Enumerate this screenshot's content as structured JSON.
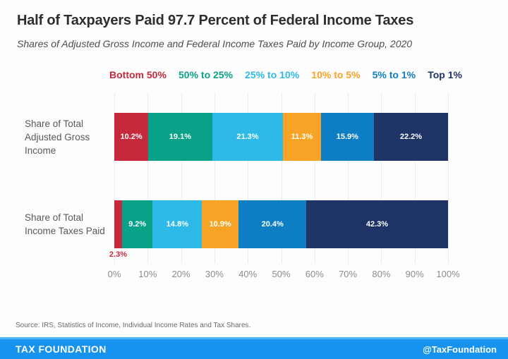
{
  "title": "Half of Taxpayers Paid 97.7 Percent of Federal Income Taxes",
  "subtitle": "Shares of Adjusted Gross Income and Federal Income Taxes Paid by Income Group, 2020",
  "chart_data": {
    "type": "bar",
    "orientation": "horizontal",
    "stacked": true,
    "categories": [
      "Share of Total Adjusted Gross Income",
      "Share of Total Income Taxes Paid"
    ],
    "category_label_lines": [
      [
        "Share of Total",
        "Adjusted Gross",
        "Income"
      ],
      [
        "Share of Total",
        "Income Taxes Paid"
      ]
    ],
    "series": [
      {
        "name": "Bottom 50%",
        "color": "#c5293b",
        "values": [
          10.2,
          2.3
        ]
      },
      {
        "name": "50% to 25%",
        "color": "#0aa189",
        "values": [
          19.1,
          9.2
        ]
      },
      {
        "name": "25% to 10%",
        "color": "#2fb9e9",
        "values": [
          21.3,
          14.8
        ]
      },
      {
        "name": "10% to 5%",
        "color": "#f7a325",
        "values": [
          11.3,
          10.9
        ]
      },
      {
        "name": "5% to 1%",
        "color": "#0d7ec4",
        "values": [
          15.9,
          20.4
        ]
      },
      {
        "name": "Top 1%",
        "color": "#1e3366",
        "values": [
          22.2,
          42.3
        ]
      }
    ],
    "xlim": [
      0,
      100
    ],
    "x_ticks": [
      "0%",
      "10%",
      "20%",
      "30%",
      "40%",
      "50%",
      "60%",
      "70%",
      "80%",
      "90%",
      "100%"
    ],
    "grid": true,
    "legend_position": "top",
    "value_labels": "inside-white, outside-below-when-narrow"
  },
  "source": "Source: IRS, Statistics of Income, Individual Income Rates and Tax Shares.",
  "footer": {
    "brand": "TAX FOUNDATION",
    "handle": "@TaxFoundation",
    "bar_color": "#1892ef",
    "accent_color": "#4db9f7",
    "text_color": "#ffffff"
  },
  "style_colors": {
    "background": "#fdfdfd",
    "title_text": "#2d2d2d",
    "subtitle_text": "#4c4c4c",
    "row_label_text": "#595959",
    "axis_tick_text": "#8c8c8c",
    "gridline": "#ebebeb",
    "bar_value_text": "#ffffff"
  }
}
